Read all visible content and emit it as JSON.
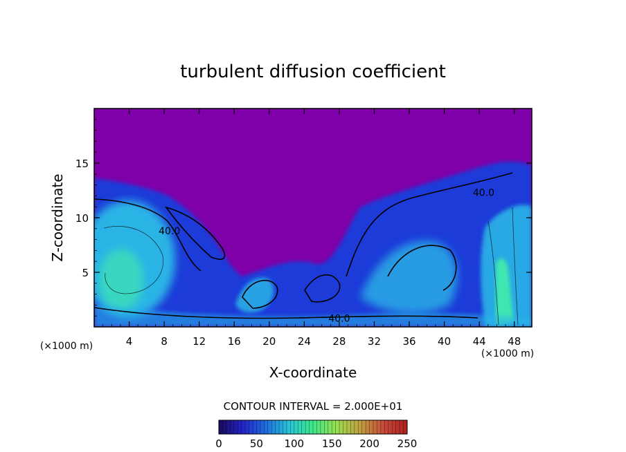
{
  "chart_data": {
    "type": "heatmap",
    "title": "turbulent diffusion coefficient",
    "xlabel": "X-coordinate",
    "ylabel": "Z-coordinate",
    "x_unit": "(×1000 m)",
    "y_unit": "(×1000 m)",
    "xlim": [
      0,
      50
    ],
    "ylim": [
      0,
      20
    ],
    "x_ticks": [
      4,
      8,
      12,
      16,
      20,
      24,
      28,
      32,
      36,
      40,
      44,
      48
    ],
    "y_ticks": [
      5,
      10,
      15
    ],
    "contour_interval_label": "CONTOUR INTERVAL = 2.000E+01",
    "contour_labels": [
      {
        "text": "40.0",
        "x": 44.5,
        "y": 12.3
      },
      {
        "text": "40.0",
        "x": 8.6,
        "y": 8.8
      },
      {
        "text": "40.0",
        "x": 28.0,
        "y": 0.8
      }
    ],
    "colorbar": {
      "min": 0,
      "max": 250,
      "ticks": [
        0,
        50,
        100,
        150,
        200,
        250
      ],
      "colors": [
        "#1a0a5a",
        "#2323c8",
        "#1f6fe0",
        "#29c6d8",
        "#3ee88a",
        "#9ae050",
        "#c0a040",
        "#c84a3a",
        "#b02020"
      ]
    },
    "colors": {
      "background_field": "#7f00a8",
      "low": "#1f3ad8",
      "mid": "#2bb4e6",
      "high": "#3fe6b0"
    }
  }
}
